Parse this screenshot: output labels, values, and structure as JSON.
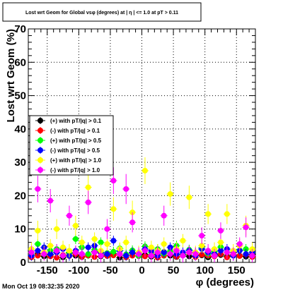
{
  "title": "Lost wrt Geom for Global vsφ (degrees) at | η | <= 1.0 at pT > 0.11",
  "timestamp": "Mon Oct 19 08:32:35 2020",
  "chart_data": {
    "type": "scatter",
    "title": "Lost wrt Geom for Global vsφ (degrees) at | η | <= 1.0 at pT > 0.11",
    "xlabel": "φ (degrees)",
    "ylabel": "Lost wrt Geom (%)",
    "xlim": [
      -180,
      180
    ],
    "ylim": [
      0,
      70
    ],
    "x_ticks": [
      -150,
      -100,
      -50,
      0,
      50,
      100,
      150
    ],
    "x_tick_labels": [
      "-150",
      "-100",
      "-50",
      "0",
      "50",
      "100",
      "150"
    ],
    "y_ticks": [
      0,
      10,
      20,
      30,
      40,
      50,
      60,
      70
    ],
    "y_tick_labels": [
      "0",
      "10",
      "20",
      "30",
      "40",
      "50",
      "60",
      "70"
    ],
    "grid": true,
    "legend_position": "left-middle",
    "series": [
      {
        "name": "(+) with pT/|q| > 0.1",
        "color": "#000000",
        "x": [
          -175,
          -165,
          -155,
          -145,
          -135,
          -125,
          -115,
          -105,
          -95,
          -85,
          -75,
          -65,
          -55,
          -45,
          -35,
          -25,
          -15,
          -5,
          5,
          15,
          25,
          35,
          45,
          55,
          65,
          75,
          85,
          95,
          105,
          115,
          125,
          135,
          145,
          155,
          165,
          175
        ],
        "y": [
          2.0,
          2.5,
          1.8,
          2.2,
          3.0,
          1.5,
          2.8,
          2.0,
          1.6,
          2.4,
          3.2,
          1.8,
          2.2,
          2.6,
          1.4,
          2.0,
          2.8,
          1.9,
          2.3,
          1.7,
          2.5,
          3.1,
          2.0,
          1.6,
          2.4,
          1.8,
          2.9,
          2.1,
          1.5,
          2.6,
          2.2,
          1.8,
          3.0,
          2.0,
          1.7,
          2.3
        ],
        "err": [
          0.8,
          0.8,
          0.8,
          0.8,
          0.8,
          0.8,
          0.8,
          0.8,
          0.8,
          0.8,
          0.8,
          0.8,
          0.8,
          0.8,
          0.8,
          0.8,
          0.8,
          0.8,
          0.8,
          0.8,
          0.8,
          0.8,
          0.8,
          0.8,
          0.8,
          0.8,
          0.8,
          0.8,
          0.8,
          0.8,
          0.8,
          0.8,
          0.8,
          0.8,
          0.8,
          0.8
        ]
      },
      {
        "name": "(-) with pT/|q| > 0.1",
        "color": "#ff0000",
        "x": [
          -175,
          -165,
          -155,
          -145,
          -135,
          -125,
          -115,
          -105,
          -95,
          -85,
          -75,
          -65,
          -55,
          -45,
          -35,
          -25,
          -15,
          -5,
          5,
          15,
          25,
          35,
          45,
          55,
          65,
          75,
          85,
          95,
          105,
          115,
          125,
          135,
          145,
          155,
          165,
          175
        ],
        "y": [
          1.5,
          2.0,
          2.6,
          1.8,
          1.4,
          2.2,
          1.9,
          2.5,
          1.7,
          2.0,
          1.6,
          2.8,
          1.9,
          2.1,
          2.4,
          1.5,
          2.0,
          2.6,
          1.8,
          2.2,
          1.4,
          2.0,
          2.5,
          1.7,
          2.1,
          2.9,
          1.6,
          2.3,
          2.0,
          1.8,
          2.5,
          1.5,
          2.2,
          1.9,
          2.4,
          1.6
        ],
        "err": [
          0.8,
          0.8,
          0.8,
          0.8,
          0.8,
          0.8,
          0.8,
          0.8,
          0.8,
          0.8,
          0.8,
          0.8,
          0.8,
          0.8,
          0.8,
          0.8,
          0.8,
          0.8,
          0.8,
          0.8,
          0.8,
          0.8,
          0.8,
          0.8,
          0.8,
          0.8,
          0.8,
          0.8,
          0.8,
          0.8,
          0.8,
          0.8,
          0.8,
          0.8,
          0.8,
          0.8
        ]
      },
      {
        "name": "(+) with pT/|q| > 0.5",
        "color": "#00ff00",
        "x": [
          -175,
          -165,
          -155,
          -145,
          -135,
          -125,
          -115,
          -105,
          -95,
          -85,
          -75,
          -65,
          -55,
          -45,
          -35,
          -25,
          -15,
          -5,
          5,
          15,
          25,
          35,
          45,
          55,
          65,
          75,
          85,
          95,
          105,
          115,
          125,
          135,
          145,
          155,
          165,
          175
        ],
        "y": [
          3.0,
          5.5,
          2.5,
          3.5,
          4.0,
          2.0,
          3.0,
          7.0,
          4.5,
          2.5,
          3.8,
          6.0,
          2.8,
          3.2,
          4.2,
          2.4,
          3.6,
          2.0,
          4.8,
          3.0,
          4.0,
          2.6,
          3.4,
          5.0,
          2.2,
          3.8,
          3.0,
          4.4,
          2.6,
          3.2,
          4.6,
          3.0,
          2.4,
          3.6,
          4.0,
          3.0
        ],
        "err": [
          1.5,
          1.5,
          1.5,
          1.5,
          1.5,
          1.5,
          1.5,
          1.5,
          1.5,
          1.5,
          1.5,
          1.5,
          1.5,
          1.5,
          1.5,
          1.5,
          1.5,
          1.5,
          1.5,
          1.5,
          1.5,
          1.5,
          1.5,
          1.5,
          1.5,
          1.5,
          1.5,
          1.5,
          1.5,
          1.5,
          1.5,
          1.5,
          1.5,
          1.5,
          1.5,
          1.5
        ]
      },
      {
        "name": "(-) with pT/|q| > 0.5",
        "color": "#0000ff",
        "x": [
          -175,
          -165,
          -155,
          -145,
          -135,
          -125,
          -115,
          -105,
          -95,
          -85,
          -75,
          -65,
          -55,
          -45,
          -35,
          -25,
          -15,
          -5,
          5,
          15,
          25,
          35,
          45,
          55,
          65,
          75,
          85,
          95,
          105,
          115,
          125,
          135,
          145,
          155,
          165,
          175
        ],
        "y": [
          2.0,
          3.5,
          4.5,
          2.5,
          3.0,
          4.0,
          2.0,
          3.5,
          2.5,
          4.5,
          5.0,
          3.0,
          2.5,
          6.5,
          3.5,
          2.0,
          3.0,
          2.5,
          4.0,
          3.5,
          2.0,
          3.0,
          4.5,
          2.5,
          3.0,
          3.5,
          2.0,
          4.0,
          3.0,
          2.5,
          3.5,
          4.0,
          2.0,
          3.5,
          2.5,
          3.0
        ],
        "err": [
          1.5,
          1.5,
          1.5,
          1.5,
          1.5,
          1.5,
          1.5,
          1.5,
          1.5,
          1.5,
          1.5,
          1.5,
          1.5,
          1.5,
          1.5,
          1.5,
          1.5,
          1.5,
          1.5,
          1.5,
          1.5,
          1.5,
          1.5,
          1.5,
          1.5,
          1.5,
          1.5,
          1.5,
          1.5,
          1.5,
          1.5,
          1.5,
          1.5,
          1.5,
          1.5,
          1.5
        ]
      },
      {
        "name": "(+) with pT/|q| > 1.0",
        "color": "#ffff00",
        "x": [
          -175,
          -165,
          -155,
          -145,
          -135,
          -125,
          -115,
          -105,
          -95,
          -85,
          -75,
          -65,
          -55,
          -45,
          -35,
          -25,
          -15,
          -5,
          5,
          15,
          25,
          35,
          45,
          55,
          65,
          75,
          85,
          95,
          105,
          115,
          125,
          135,
          145,
          155,
          165,
          175
        ],
        "y": [
          4.0,
          9.5,
          3.0,
          5.0,
          10.0,
          4.5,
          3.5,
          11.0,
          6.0,
          22.5,
          7.0,
          3.5,
          5.5,
          16.0,
          4.0,
          6.0,
          15.0,
          3.0,
          27.5,
          4.5,
          3.5,
          5.5,
          20.5,
          4.0,
          6.5,
          19.5,
          3.0,
          5.0,
          14.5,
          4.0,
          6.0,
          14.5,
          3.5,
          5.0,
          11.0,
          4.0
        ],
        "err": [
          2.0,
          3.0,
          2.0,
          2.0,
          3.0,
          2.0,
          2.0,
          3.0,
          2.0,
          4.0,
          2.0,
          2.0,
          2.0,
          3.5,
          2.0,
          2.0,
          3.5,
          2.0,
          4.0,
          2.0,
          2.0,
          2.0,
          3.5,
          2.0,
          2.0,
          3.5,
          2.0,
          2.0,
          3.0,
          2.0,
          2.0,
          3.0,
          2.0,
          2.0,
          3.0,
          2.0
        ]
      },
      {
        "name": "(-) with pT/|q| > 1.0",
        "color": "#ff00ff",
        "x": [
          -175,
          -165,
          -155,
          -145,
          -135,
          -125,
          -115,
          -105,
          -95,
          -85,
          -75,
          -65,
          -55,
          -45,
          -35,
          -25,
          -15,
          -5,
          5,
          15,
          25,
          35,
          45,
          55,
          65,
          75,
          85,
          95,
          105,
          115,
          125,
          135,
          145,
          155,
          165,
          175
        ],
        "y": [
          3.0,
          22.0,
          2.5,
          18.5,
          3.5,
          2.0,
          14.0,
          3.0,
          2.5,
          18.0,
          3.0,
          2.0,
          10.0,
          24.5,
          2.5,
          22.0,
          12.0,
          2.5,
          3.5,
          2.0,
          3.0,
          14.0,
          2.5,
          3.5,
          2.0,
          3.0,
          2.5,
          8.0,
          3.5,
          2.0,
          9.5,
          3.0,
          2.5,
          5.5,
          10.5,
          2.0
        ],
        "err": [
          2.0,
          4.0,
          2.0,
          3.5,
          2.0,
          2.0,
          3.0,
          2.0,
          2.0,
          3.5,
          2.0,
          2.0,
          3.0,
          4.0,
          2.0,
          4.5,
          3.0,
          2.0,
          2.0,
          2.0,
          2.0,
          3.0,
          2.0,
          2.0,
          2.0,
          2.0,
          2.0,
          2.5,
          2.0,
          2.0,
          2.5,
          2.0,
          2.0,
          2.0,
          3.0,
          2.0
        ]
      }
    ]
  }
}
